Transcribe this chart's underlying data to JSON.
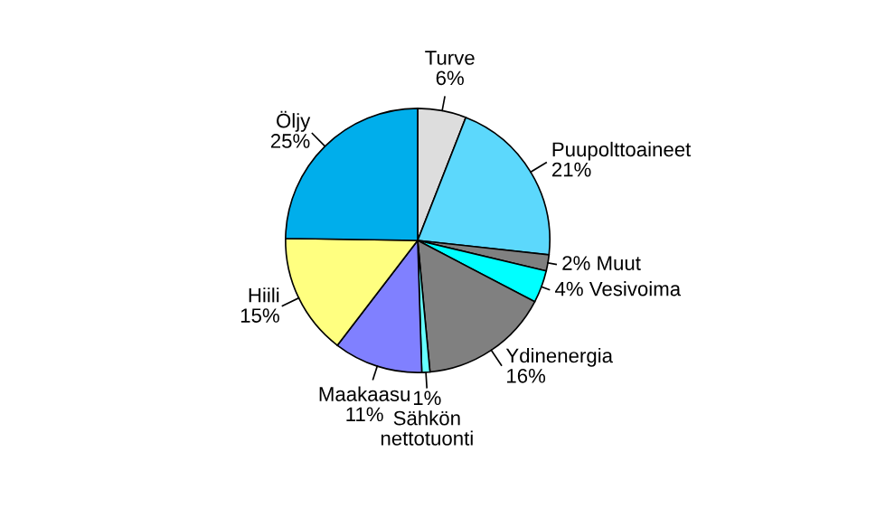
{
  "chart_data": {
    "type": "pie",
    "categories": [
      "Turve",
      "Puupolttoaineet",
      "Muut",
      "Vesivoima",
      "Ydinenergia",
      "Sähkön\nnettotuonti",
      "Maakaasu",
      "Hiili",
      "Öljy"
    ],
    "values": [
      6,
      21,
      2,
      4,
      16,
      1,
      11,
      15,
      25
    ],
    "value_labels": [
      "6%",
      "21%",
      "2%",
      "4%",
      "16%",
      "1%",
      "11%",
      "15%",
      "25%"
    ],
    "colors": [
      "#dddddd",
      "#5cd8fc",
      "#808080",
      "#00ffff",
      "#808080",
      "#66ffff",
      "#8080ff",
      "#ffff80",
      "#00aeeb"
    ]
  }
}
